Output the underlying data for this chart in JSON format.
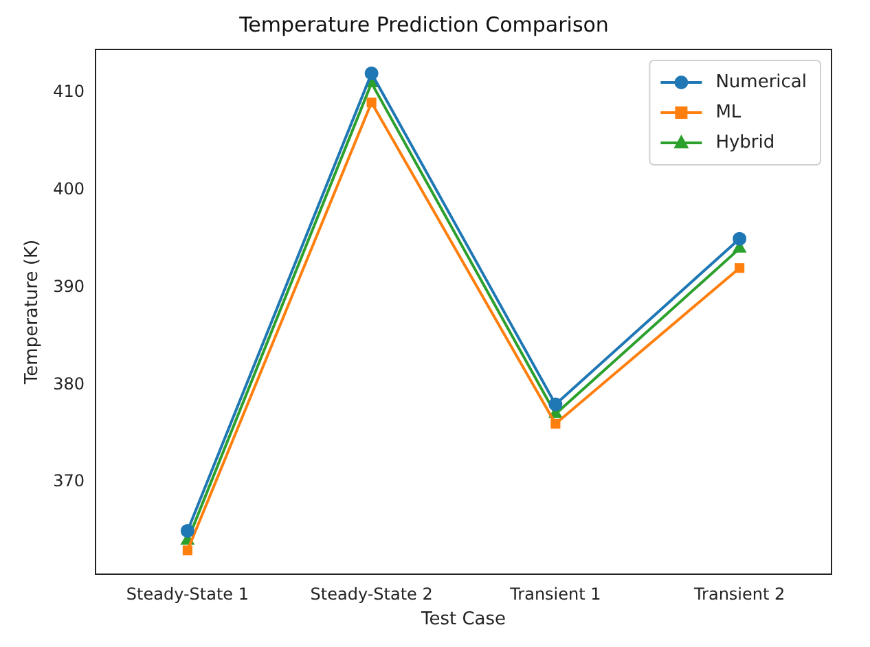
{
  "chart_data": {
    "type": "line",
    "title": "Temperature Prediction Comparison",
    "xlabel": "Test Case",
    "ylabel": "Temperature (K)",
    "categories": [
      "Steady-State 1",
      "Steady-State 2",
      "Transient 1",
      "Transient 2"
    ],
    "series": [
      {
        "name": "Numerical",
        "color": "#1f77b4",
        "marker": "circle",
        "values": [
          365,
          412,
          378,
          395
        ]
      },
      {
        "name": "ML",
        "color": "#ff7f0e",
        "marker": "square",
        "values": [
          363,
          409,
          376,
          392
        ]
      },
      {
        "name": "Hybrid",
        "color": "#2ca02c",
        "marker": "triangle",
        "values": [
          364,
          411,
          377,
          394
        ]
      }
    ],
    "ylim": [
      360.55,
      414.45
    ],
    "yticks": [
      370,
      380,
      390,
      400,
      410
    ],
    "grid": false,
    "legend": "top right",
    "line_style": "solid"
  }
}
